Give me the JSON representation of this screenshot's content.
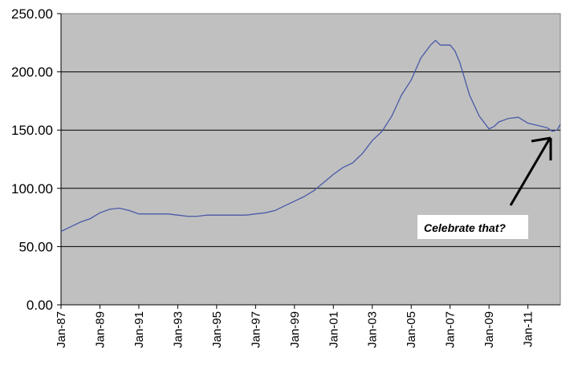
{
  "chart_data": {
    "type": "line",
    "title": "",
    "xlabel": "",
    "ylabel": "",
    "ylim": [
      0,
      250
    ],
    "xlim": [
      "Jan-87",
      "Sep-12"
    ],
    "grid": {
      "horizontal": true,
      "vertical": false
    },
    "legend": "none",
    "y_ticks": [
      "0.00",
      "50.00",
      "100.00",
      "150.00",
      "200.00",
      "250.00"
    ],
    "x_ticks": [
      "Jan-87",
      "Jan-89",
      "Jan-91",
      "Jan-93",
      "Jan-95",
      "Jan-97",
      "Jan-99",
      "Jan-01",
      "Jan-03",
      "Jan-05",
      "Jan-07",
      "Jan-09",
      "Jan-11"
    ],
    "colors": {
      "plot_background": "#c0c0c0",
      "line": "#4a5aa8",
      "gridline": "#000000"
    },
    "series": [
      {
        "name": "",
        "x": [
          "Jan-87",
          "Jul-87",
          "Jan-88",
          "Jul-88",
          "Jan-89",
          "Jul-89",
          "Jan-90",
          "Jul-90",
          "Jan-91",
          "Jul-91",
          "Jan-92",
          "Jul-92",
          "Jan-93",
          "Jul-93",
          "Jan-94",
          "Jul-94",
          "Jan-95",
          "Jul-95",
          "Jan-96",
          "Jul-96",
          "Jan-97",
          "Jul-97",
          "Jan-98",
          "Jul-98",
          "Jan-99",
          "Jul-99",
          "Jan-00",
          "Jul-00",
          "Jan-01",
          "Jul-01",
          "Jan-02",
          "Jul-02",
          "Jan-03",
          "Jul-03",
          "Jan-04",
          "Jul-04",
          "Jan-05",
          "Jul-05",
          "Jan-06",
          "Apr-06",
          "Jul-06",
          "Oct-06",
          "Jan-07",
          "Apr-07",
          "Jul-07",
          "Jan-08",
          "Jul-08",
          "Jan-09",
          "Apr-09",
          "Jul-09",
          "Jan-10",
          "Jul-10",
          "Jan-11",
          "Jul-11",
          "Jan-12",
          "Apr-12",
          "Jul-12",
          "Sep-12"
        ],
        "values": [
          63,
          67,
          71,
          74,
          79,
          82,
          83,
          81,
          78,
          78,
          78,
          78,
          77,
          76,
          76,
          77,
          77,
          77,
          77,
          77,
          78,
          79,
          81,
          85,
          89,
          93,
          98,
          105,
          112,
          118,
          122,
          130,
          141,
          149,
          162,
          180,
          193,
          212,
          223,
          227,
          223,
          223,
          223,
          218,
          208,
          180,
          162,
          151,
          153,
          157,
          160,
          161,
          156,
          154,
          152,
          149,
          150,
          155
        ]
      }
    ],
    "annotations": [
      {
        "text": "Celebrate that?",
        "points_to": {
          "x": "Apr-12",
          "y": 149
        }
      }
    ]
  }
}
